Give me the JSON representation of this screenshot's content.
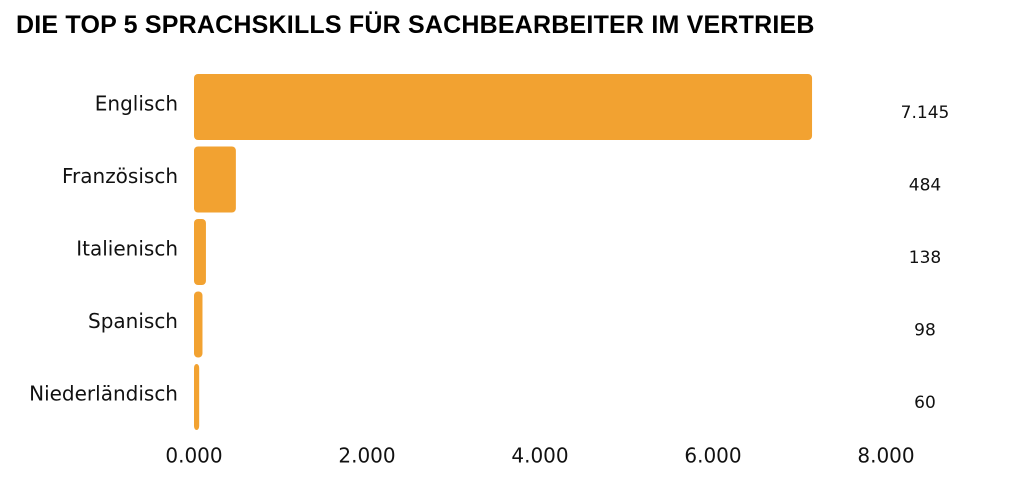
{
  "chart_data": {
    "type": "bar",
    "orientation": "horizontal",
    "title": "DIE TOP 5 SPRACHSKILLS FÜR SACHBEARBEITER IM VERTRIEB",
    "categories": [
      "Englisch",
      "Französisch",
      "Italienisch",
      "Spanisch",
      "Niederländisch"
    ],
    "values": [
      7145,
      484,
      138,
      98,
      60
    ],
    "value_labels": [
      "7.145",
      "484",
      "138",
      "98",
      "60"
    ],
    "xlim": [
      0,
      8000
    ],
    "xticks": [
      0,
      2000,
      4000,
      6000,
      8000
    ],
    "xtick_labels": [
      "0.000",
      "2.000",
      "4.000",
      "6.000",
      "8.000"
    ],
    "xlabel": "",
    "ylabel": "",
    "grid": false,
    "legend": "none",
    "bar_color": "#F2A231"
  }
}
